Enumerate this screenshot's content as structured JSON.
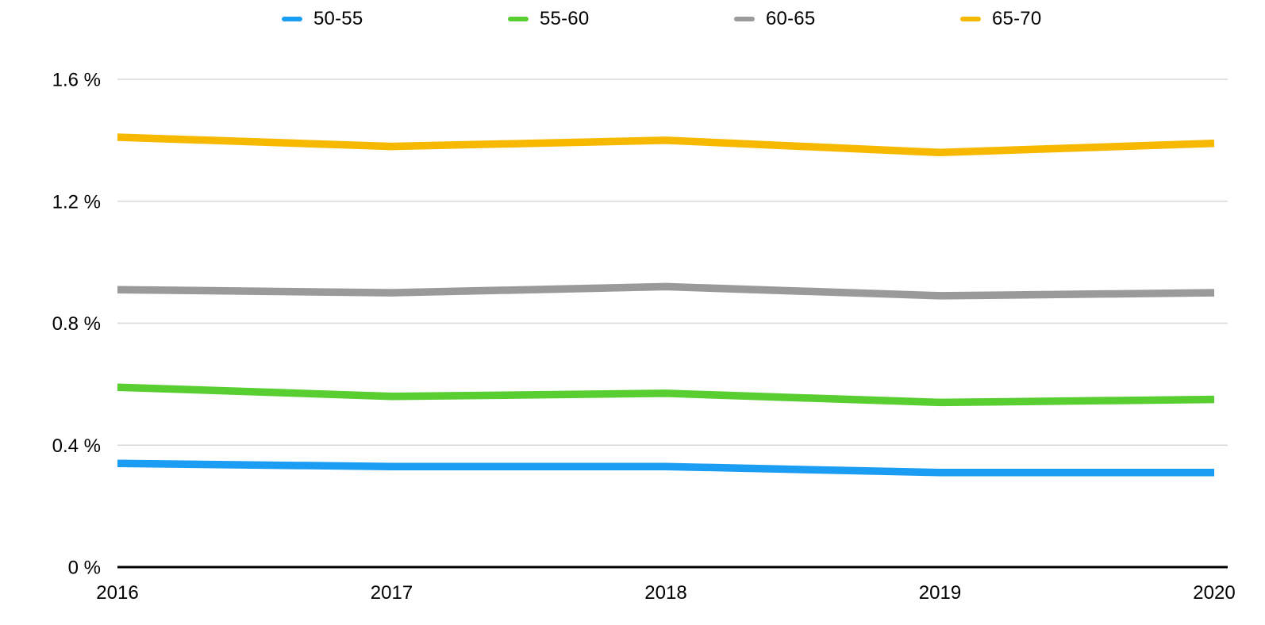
{
  "chart_data": {
    "type": "line",
    "title": "",
    "xlabel": "",
    "ylabel": "",
    "categories": [
      "2016",
      "2017",
      "2018",
      "2019",
      "2020"
    ],
    "series": [
      {
        "name": "50-55",
        "color": "#1B9DF3",
        "values": [
          0.34,
          0.33,
          0.33,
          0.31,
          0.31
        ]
      },
      {
        "name": "55-60",
        "color": "#58CE31",
        "values": [
          0.59,
          0.56,
          0.57,
          0.54,
          0.55
        ]
      },
      {
        "name": "60-65",
        "color": "#9A9A9A",
        "values": [
          0.91,
          0.9,
          0.92,
          0.89,
          0.9
        ]
      },
      {
        "name": "65-70",
        "color": "#F7B900",
        "values": [
          1.41,
          1.38,
          1.4,
          1.36,
          1.39
        ]
      }
    ],
    "ylim": [
      0,
      1.6
    ],
    "y_ticks": [
      {
        "value": 1.6,
        "label": "1.6 %"
      },
      {
        "value": 1.2,
        "label": "1.2 %"
      },
      {
        "value": 0.8,
        "label": "0.8 %"
      },
      {
        "value": 0.4,
        "label": "0.4 %"
      },
      {
        "value": 0.0,
        "label": "0 %"
      }
    ],
    "grid": true,
    "legend_position": "top",
    "colors": {
      "gridline": "#D8D8D8",
      "axis": "#000000",
      "background": "#FFFFFF",
      "text": "#000000"
    }
  }
}
